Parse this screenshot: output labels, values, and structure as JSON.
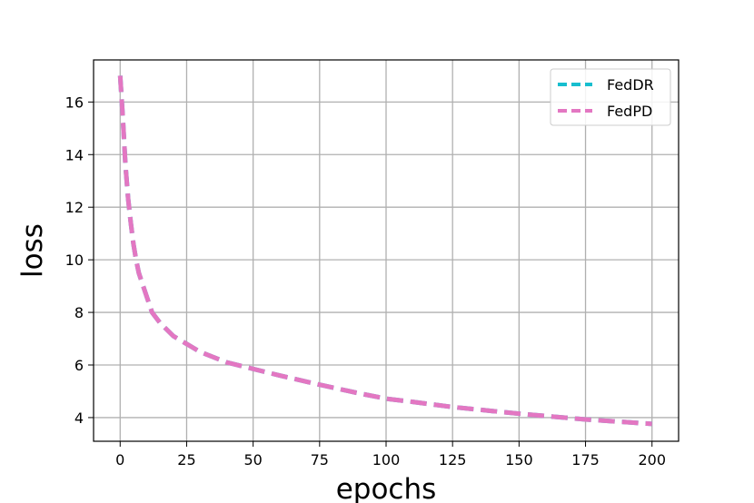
{
  "chart_data": {
    "type": "line",
    "xlabel": "epochs",
    "ylabel": "loss",
    "xlim": [
      -10,
      210
    ],
    "ylim": [
      3.1,
      17.6
    ],
    "xticks": [
      0,
      25,
      50,
      75,
      100,
      125,
      150,
      175,
      200
    ],
    "yticks": [
      4,
      6,
      8,
      10,
      12,
      14,
      16
    ],
    "grid": true,
    "legend_position": "top-right",
    "series": [
      {
        "name": "FedDR",
        "color": "#17becf",
        "x": [
          0,
          1,
          2,
          3,
          4,
          5,
          6,
          7,
          8,
          10,
          12,
          15,
          20,
          25,
          30,
          40,
          50,
          60,
          75,
          90,
          100,
          110,
          125,
          140,
          150,
          160,
          175,
          190,
          200
        ],
        "y": [
          17.0,
          15.4,
          13.6,
          12.3,
          11.4,
          10.6,
          10.0,
          9.5,
          9.2,
          8.6,
          8.0,
          7.6,
          7.1,
          6.8,
          6.5,
          6.1,
          5.85,
          5.6,
          5.25,
          4.92,
          4.72,
          4.6,
          4.4,
          4.25,
          4.15,
          4.06,
          3.93,
          3.83,
          3.76
        ]
      },
      {
        "name": "FedPD",
        "color": "#e377c2",
        "x": [
          0,
          1,
          2,
          3,
          4,
          5,
          6,
          7,
          8,
          10,
          12,
          15,
          20,
          25,
          30,
          40,
          50,
          60,
          75,
          90,
          100,
          110,
          125,
          140,
          150,
          160,
          175,
          190,
          200
        ],
        "y": [
          17.0,
          15.4,
          13.6,
          12.3,
          11.4,
          10.6,
          10.0,
          9.5,
          9.2,
          8.6,
          8.0,
          7.6,
          7.1,
          6.8,
          6.5,
          6.1,
          5.85,
          5.6,
          5.25,
          4.92,
          4.72,
          4.6,
          4.4,
          4.25,
          4.15,
          4.06,
          3.93,
          3.83,
          3.76
        ]
      }
    ]
  }
}
